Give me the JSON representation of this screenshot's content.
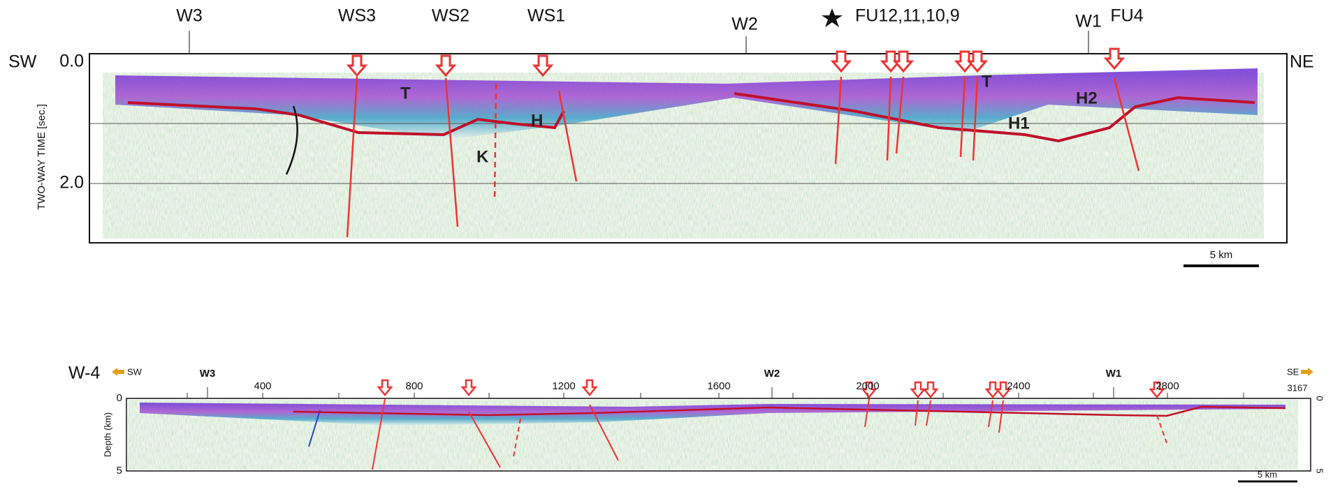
{
  "top_panel": {
    "well_labels": [
      "W3",
      "WS3",
      "WS2",
      "WS1",
      "W2",
      "FU12,11,10,9",
      "W1",
      "FU4"
    ],
    "left_label": "SW",
    "right_label": "NE",
    "y_axis_title": "TWO-WAY TIME [sec.]",
    "y_tick_labels": [
      "0.0",
      "2.0"
    ],
    "unit_labels": [
      "T",
      "H",
      "K",
      "T",
      "H1",
      "H2"
    ],
    "scale_bar": "5 km"
  },
  "bottom_panel": {
    "line_name": "W-4",
    "left_label": "SW",
    "right_label": "SE",
    "well_labels": [
      "W3",
      "W2",
      "W1"
    ],
    "x_tick_labels": [
      "400",
      "800",
      "1200",
      "1600",
      "2000",
      "2400",
      "2800"
    ],
    "end_label": "3167",
    "y_axis_title": "Depth (km)",
    "y_tick_labels": [
      "0",
      "5"
    ],
    "right_tick_labels": [
      "0",
      "5"
    ],
    "scale_bar": "5 km"
  }
}
